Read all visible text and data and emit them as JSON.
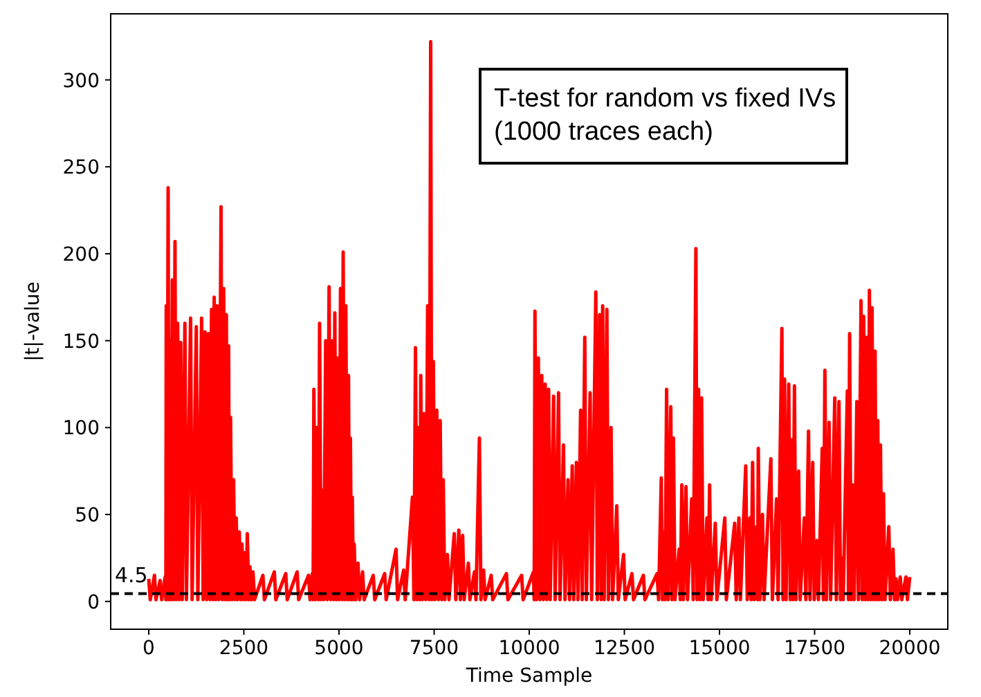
{
  "chart_data": {
    "type": "line",
    "xlabel": "Time Sample",
    "ylabel": "|t|-value",
    "annotations": [
      "T-test for random vs fixed IVs\n(1000 traces each)"
    ],
    "xlim": [
      -1000,
      21000
    ],
    "xticks": [
      0,
      2500,
      5000,
      7500,
      10000,
      12500,
      15000,
      17500,
      20000
    ],
    "ylim": [
      -16,
      338
    ],
    "yticks": [
      0,
      50,
      100,
      150,
      200,
      250,
      300
    ],
    "grid": false,
    "marker": "none",
    "line_style": "solid",
    "ref_lines": [
      {
        "axis": "y",
        "value": 4.5,
        "label": "4.5",
        "color": "#000000",
        "line_style": "dashed"
      }
    ],
    "series": [
      {
        "color": "#ff0000",
        "x": [
          0,
          40,
          150,
          190,
          300,
          340,
          430,
          450,
          460,
          480,
          510,
          530,
          560,
          580,
          620,
          650,
          690,
          720,
          760,
          800,
          840,
          880,
          950,
          990,
          1100,
          1140,
          1250,
          1290,
          1390,
          1430,
          1480,
          1520,
          1570,
          1610,
          1650,
          1690,
          1720,
          1760,
          1800,
          1840,
          1900,
          1930,
          1970,
          2000,
          2040,
          2070,
          2100,
          2120,
          2150,
          2190,
          2230,
          2270,
          2300,
          2340,
          2380,
          2420,
          2450,
          2490,
          2520,
          2560,
          2590,
          2630,
          2660,
          2700,
          2740,
          2780,
          3000,
          3040,
          3300,
          3340,
          3600,
          3640,
          3900,
          3940,
          4200,
          4240,
          4300,
          4320,
          4340,
          4380,
          4420,
          4460,
          4490,
          4530,
          4560,
          4600,
          4650,
          4690,
          4740,
          4780,
          4820,
          4860,
          4890,
          4930,
          4960,
          5000,
          5040,
          5080,
          5110,
          5150,
          5180,
          5220,
          5250,
          5280,
          5300,
          5330,
          5350,
          5380,
          5400,
          5440,
          5500,
          5540,
          5620,
          5660,
          5900,
          5940,
          6200,
          6240,
          6500,
          6540,
          6700,
          6740,
          6930,
          6970,
          7010,
          7050,
          7080,
          7120,
          7150,
          7190,
          7240,
          7280,
          7330,
          7370,
          7410,
          7440,
          7480,
          7520,
          7570,
          7610,
          7660,
          7700,
          7740,
          7780,
          7850,
          7890,
          8030,
          8070,
          8150,
          8190,
          8250,
          8290,
          8400,
          8440,
          8560,
          8600,
          8690,
          8730,
          8800,
          8840,
          9000,
          9040,
          9400,
          9440,
          9800,
          9840,
          10110,
          10130,
          10150,
          10190,
          10240,
          10280,
          10330,
          10370,
          10420,
          10460,
          10510,
          10550,
          10640,
          10680,
          10770,
          10810,
          10900,
          10940,
          11020,
          11060,
          11130,
          11170,
          11240,
          11280,
          11350,
          11390,
          11460,
          11500,
          11600,
          11640,
          11750,
          11790,
          11850,
          11890,
          11930,
          11970,
          12040,
          12080,
          12150,
          12190,
          12300,
          12340,
          12480,
          12520,
          12700,
          12740,
          13000,
          13040,
          13360,
          13400,
          13470,
          13500,
          13540,
          13570,
          13610,
          13650,
          13720,
          13750,
          13790,
          13830,
          13940,
          13970,
          14010,
          14050,
          14120,
          14160,
          14270,
          14310,
          14380,
          14410,
          14450,
          14490,
          14530,
          14570,
          14670,
          14700,
          14740,
          14780,
          14890,
          14930,
          15140,
          15180,
          15400,
          15440,
          15510,
          15550,
          15690,
          15730,
          15800,
          15830,
          15870,
          15910,
          15980,
          16000,
          16020,
          16060,
          16130,
          16170,
          16350,
          16390,
          16500,
          16540,
          16640,
          16670,
          16710,
          16750,
          16820,
          16860,
          16900,
          16930,
          16970,
          17010,
          17080,
          17120,
          17230,
          17270,
          17340,
          17380,
          17450,
          17490,
          17560,
          17600,
          17700,
          17730,
          17770,
          17810,
          17880,
          17920,
          18030,
          18070,
          18140,
          18180,
          18210,
          18250,
          18360,
          18390,
          18420,
          18460,
          18500,
          18540,
          18610,
          18650,
          18720,
          18750,
          18790,
          18830,
          18870,
          18900,
          18940,
          18970,
          19010,
          19050,
          19090,
          19120,
          19160,
          19190,
          19230,
          19270,
          19310,
          19350,
          19450,
          19490,
          19560,
          19600,
          19640,
          19680,
          19750,
          19790,
          19900,
          19940,
          20000
        ],
        "values": [
          13,
          1,
          15,
          1,
          12,
          1,
          14,
          1,
          170,
          1,
          238,
          1,
          150,
          1,
          185,
          1,
          207,
          1,
          160,
          1,
          149,
          1,
          160,
          1,
          163,
          1,
          158,
          1,
          163,
          1,
          155,
          1,
          154,
          1,
          168,
          1,
          175,
          1,
          170,
          1,
          227,
          1,
          180,
          1,
          165,
          1,
          147,
          1,
          106,
          1,
          70,
          1,
          48,
          1,
          40,
          1,
          33,
          1,
          28,
          1,
          39,
          1,
          20,
          1,
          17,
          1,
          15,
          1,
          17,
          1,
          16,
          1,
          17,
          1,
          15,
          1,
          16,
          1,
          122,
          1,
          100,
          1,
          160,
          1,
          64,
          1,
          150,
          1,
          181,
          1,
          150,
          1,
          166,
          1,
          140,
          1,
          180,
          1,
          201,
          1,
          170,
          1,
          130,
          1,
          94,
          1,
          60,
          1,
          33,
          1,
          22,
          1,
          17,
          1,
          15,
          1,
          16,
          1,
          30,
          1,
          18,
          1,
          60,
          1,
          146,
          1,
          100,
          1,
          130,
          1,
          108,
          1,
          170,
          1,
          322,
          1,
          138,
          1,
          110,
          1,
          104,
          1,
          70,
          1,
          27,
          1,
          39,
          1,
          41,
          1,
          38,
          1,
          22,
          1,
          17,
          1,
          94,
          1,
          18,
          1,
          15,
          1,
          16,
          1,
          15,
          1,
          17,
          1,
          167,
          1,
          140,
          1,
          130,
          1,
          125,
          1,
          122,
          1,
          118,
          1,
          120,
          1,
          90,
          1,
          70,
          1,
          78,
          1,
          80,
          1,
          110,
          1,
          152,
          1,
          120,
          1,
          178,
          1,
          165,
          1,
          170,
          1,
          168,
          1,
          100,
          1,
          55,
          1,
          27,
          1,
          16,
          1,
          15,
          1,
          16,
          1,
          71,
          1,
          40,
          1,
          122,
          1,
          112,
          1,
          94,
          1,
          30,
          1,
          67,
          1,
          66,
          1,
          59,
          1,
          203,
          1,
          122,
          1,
          117,
          1,
          48,
          1,
          67,
          1,
          45,
          1,
          48,
          1,
          45,
          1,
          48,
          1,
          78,
          1,
          48,
          1,
          80,
          1,
          43,
          1,
          88,
          1,
          50,
          1,
          82,
          1,
          59,
          1,
          157,
          1,
          128,
          1,
          125,
          1,
          93,
          1,
          124,
          1,
          75,
          1,
          48,
          1,
          98,
          1,
          80,
          1,
          35,
          1,
          88,
          1,
          133,
          1,
          103,
          1,
          117,
          1,
          115,
          1,
          25,
          1,
          121,
          1,
          154,
          1,
          67,
          1,
          115,
          1,
          173,
          1,
          164,
          1,
          152,
          1,
          179,
          1,
          169,
          1,
          144,
          1,
          104,
          1,
          90,
          1,
          62,
          1,
          43,
          1,
          30,
          1,
          13,
          1,
          14,
          1,
          14,
          1,
          14
        ]
      }
    ]
  }
}
